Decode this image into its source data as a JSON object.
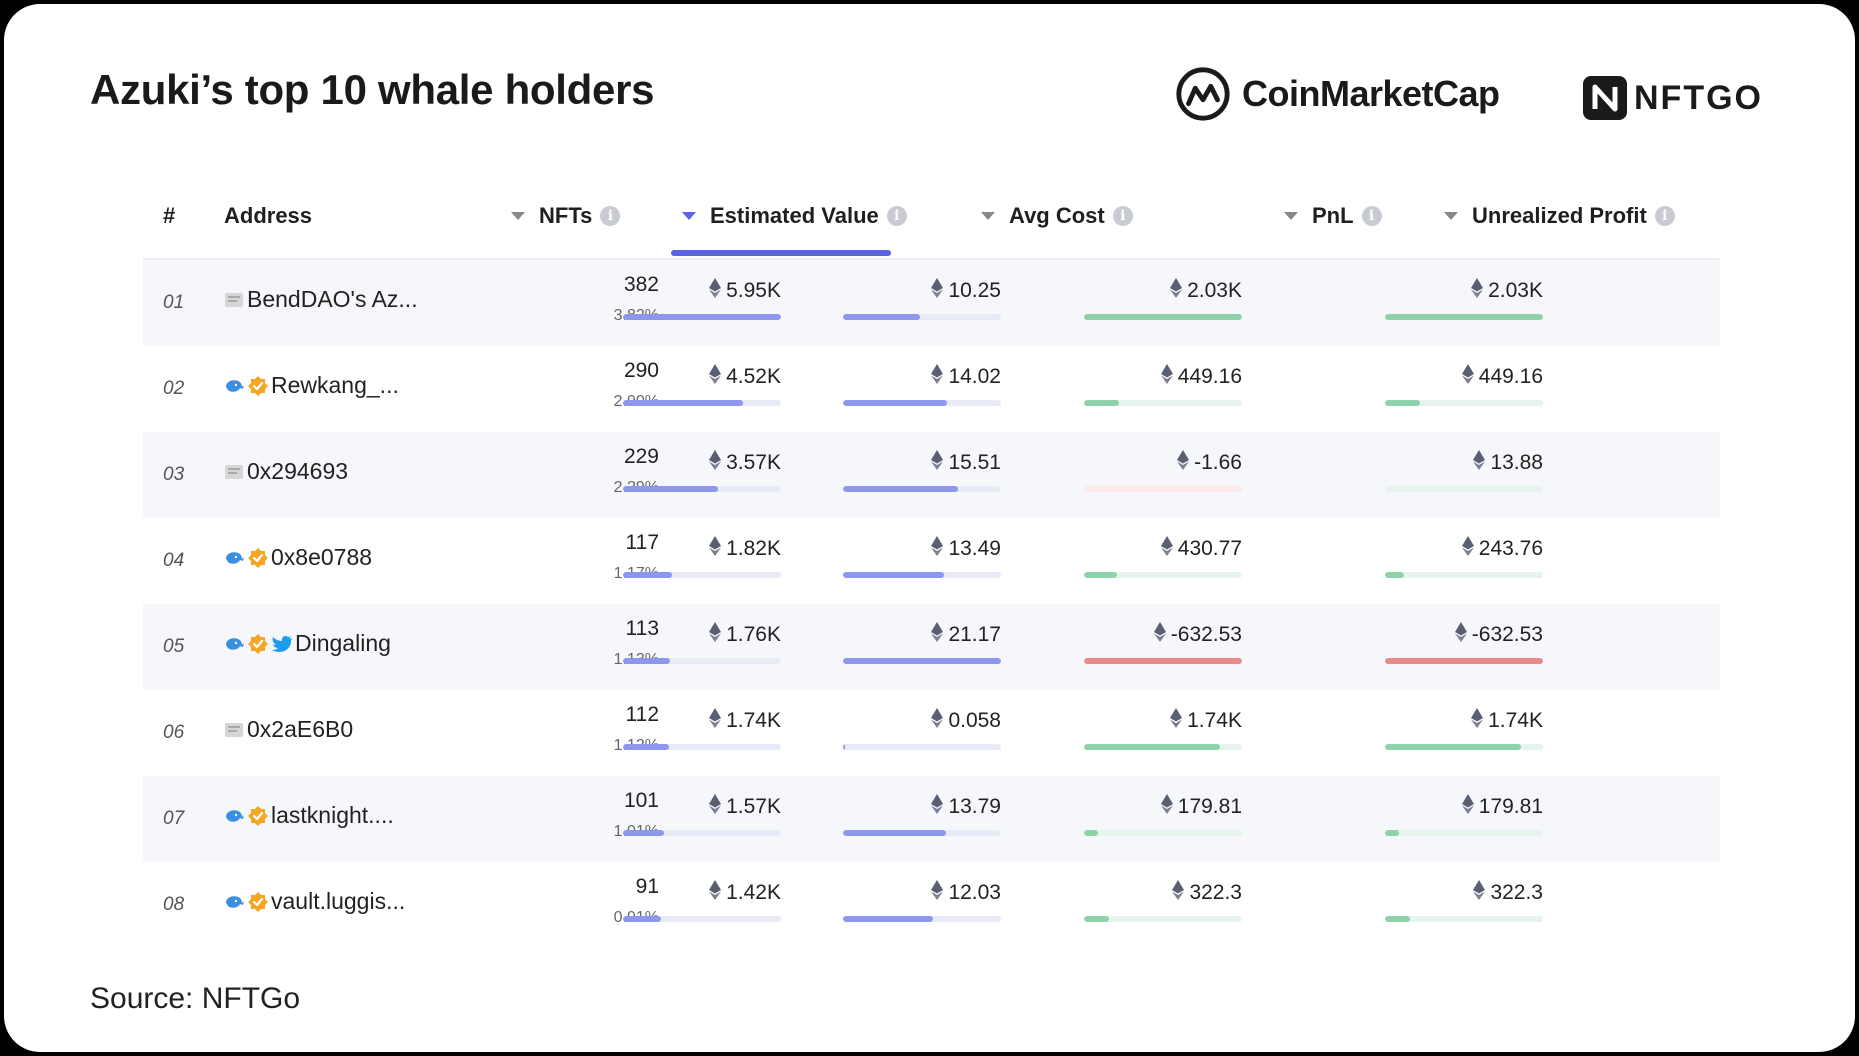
{
  "header": {
    "title": "Azuki’s top 10 whale holders",
    "logos": [
      {
        "name": "CoinMarketCap",
        "text": "CoinMarketCap"
      },
      {
        "name": "NFTGO",
        "text": "NFTGO"
      }
    ]
  },
  "table": {
    "columns": [
      "#",
      "Address",
      "NFTs",
      "Estimated Value",
      "Avg Cost",
      "PnL",
      "Unrealized Profit"
    ],
    "sorted_column": "Estimated Value",
    "rows": [
      {
        "rank": "01",
        "address": "BendDAO's Az...",
        "icons": [
          "contract"
        ],
        "nfts": "382",
        "pct": "3.82%",
        "est": "5.95K",
        "est_fill": 1.0,
        "avg": "10.25",
        "avg_fill": 0.49,
        "pnl": "2.03K",
        "pnl_fill": 1.0,
        "pnl_sign": "pos",
        "up": "2.03K",
        "up_fill": 1.0,
        "up_sign": "pos"
      },
      {
        "rank": "02",
        "address": "Rewkang_...",
        "icons": [
          "whale",
          "verified"
        ],
        "nfts": "290",
        "pct": "2.90%",
        "est": "4.52K",
        "est_fill": 0.76,
        "avg": "14.02",
        "avg_fill": 0.66,
        "pnl": "449.16",
        "pnl_fill": 0.22,
        "pnl_sign": "pos",
        "up": "449.16",
        "up_fill": 0.22,
        "up_sign": "pos"
      },
      {
        "rank": "03",
        "address": "0x294693",
        "icons": [
          "contract"
        ],
        "nfts": "229",
        "pct": "2.29%",
        "est": "3.57K",
        "est_fill": 0.6,
        "avg": "15.51",
        "avg_fill": 0.73,
        "pnl": "-1.66",
        "pnl_fill": 0.0,
        "pnl_sign": "neg",
        "up": "13.88",
        "up_fill": 0.0,
        "up_sign": "pos"
      },
      {
        "rank": "04",
        "address": "0x8e0788",
        "icons": [
          "whale",
          "verified"
        ],
        "nfts": "117",
        "pct": "1.17%",
        "est": "1.82K",
        "est_fill": 0.31,
        "avg": "13.49",
        "avg_fill": 0.64,
        "pnl": "430.77",
        "pnl_fill": 0.21,
        "pnl_sign": "pos",
        "up": "243.76",
        "up_fill": 0.12,
        "up_sign": "pos"
      },
      {
        "rank": "05",
        "address": "Dingaling",
        "icons": [
          "whale",
          "verified",
          "twitter"
        ],
        "nfts": "113",
        "pct": "1.13%",
        "est": "1.76K",
        "est_fill": 0.3,
        "avg": "21.17",
        "avg_fill": 1.0,
        "pnl": "-632.53",
        "pnl_fill": 1.0,
        "pnl_sign": "neg",
        "up": "-632.53",
        "up_fill": 1.0,
        "up_sign": "neg"
      },
      {
        "rank": "06",
        "address": "0x2aE6B0",
        "icons": [
          "contract"
        ],
        "nfts": "112",
        "pct": "1.12%",
        "est": "1.74K",
        "est_fill": 0.29,
        "avg": "0.058",
        "avg_fill": 0.01,
        "pnl": "1.74K",
        "pnl_fill": 0.86,
        "pnl_sign": "pos",
        "up": "1.74K",
        "up_fill": 0.86,
        "up_sign": "pos"
      },
      {
        "rank": "07",
        "address": "lastknight....",
        "icons": [
          "whale",
          "verified"
        ],
        "nfts": "101",
        "pct": "1.01%",
        "est": "1.57K",
        "est_fill": 0.26,
        "avg": "13.79",
        "avg_fill": 0.65,
        "pnl": "179.81",
        "pnl_fill": 0.09,
        "pnl_sign": "pos",
        "up": "179.81",
        "up_fill": 0.09,
        "up_sign": "pos"
      },
      {
        "rank": "08",
        "address": "vault.luggis...",
        "icons": [
          "whale",
          "verified"
        ],
        "nfts": "91",
        "pct": "0.91%",
        "est": "1.42K",
        "est_fill": 0.24,
        "avg": "12.03",
        "avg_fill": 0.57,
        "pnl": "322.3",
        "pnl_fill": 0.16,
        "pnl_sign": "pos",
        "up": "322.3",
        "up_fill": 0.16,
        "up_sign": "pos"
      }
    ]
  },
  "colors": {
    "accent": "#5b63e6",
    "bar_blue": "#8d97ee",
    "bar_green": "#8fd1a8",
    "bar_red": "#e88a8a"
  },
  "footer": {
    "source": "Source: NFTGo"
  }
}
